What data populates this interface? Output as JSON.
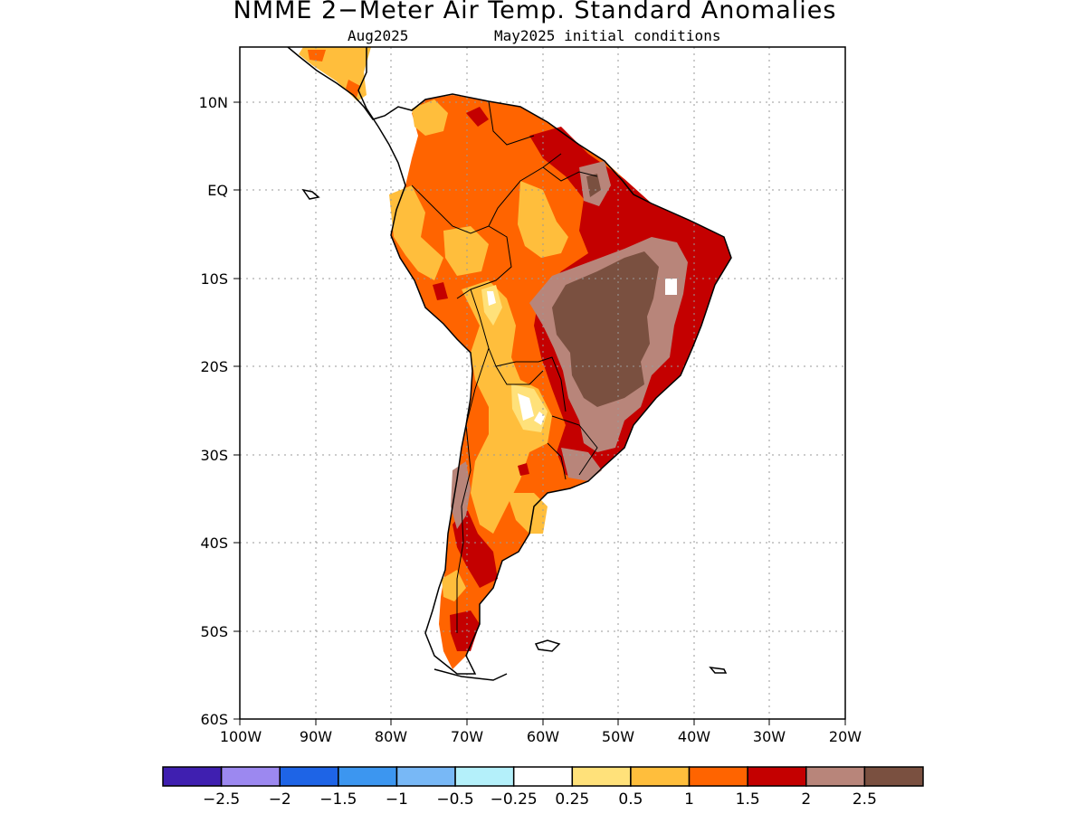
{
  "title": "NMME 2−Meter Air Temp. Standard Anomalies",
  "subtitle_left": "Aug2025",
  "subtitle_right": "May2025 initial conditions",
  "map": {
    "lat_labels": [
      "10N",
      "EQ",
      "10S",
      "20S",
      "30S",
      "40S",
      "50S",
      "60S"
    ],
    "lon_labels": [
      "100W",
      "90W",
      "80W",
      "70W",
      "60W",
      "50W",
      "40W",
      "30W",
      "20W"
    ]
  },
  "colorbar": {
    "colors": [
      "#3f1fb0",
      "#9c88f0",
      "#1e64e6",
      "#3c96f0",
      "#78b8f6",
      "#b4f0fa",
      "#ffffff",
      "#ffe17a",
      "#ffbe3c",
      "#ff6400",
      "#c40000",
      "#b8857a",
      "#7a5040"
    ],
    "labels": [
      "−2.5",
      "−2",
      "−1.5",
      "−1",
      "−0.5",
      "−0.25",
      "0.25",
      "0.5",
      "1",
      "1.5",
      "2",
      "2.5"
    ]
  }
}
